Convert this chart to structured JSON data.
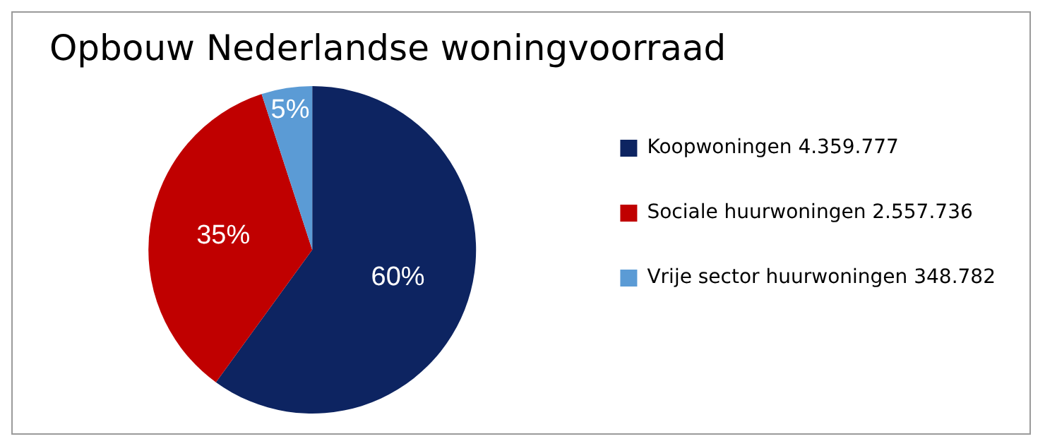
{
  "chart_data": {
    "type": "pie",
    "title": "Opbouw Nederlandse woningvoorraad",
    "categories": [
      "Koopwoningen 4.359.777",
      "Sociale huurwoningen 2.557.736",
      "Vrije sector huurwoningen 348.782"
    ],
    "values": [
      60,
      35,
      5
    ],
    "colors": [
      "#0d2461",
      "#c00000",
      "#5b9bd5"
    ],
    "value_labels": [
      "60%",
      "35%",
      "5%"
    ],
    "legend": "right"
  }
}
